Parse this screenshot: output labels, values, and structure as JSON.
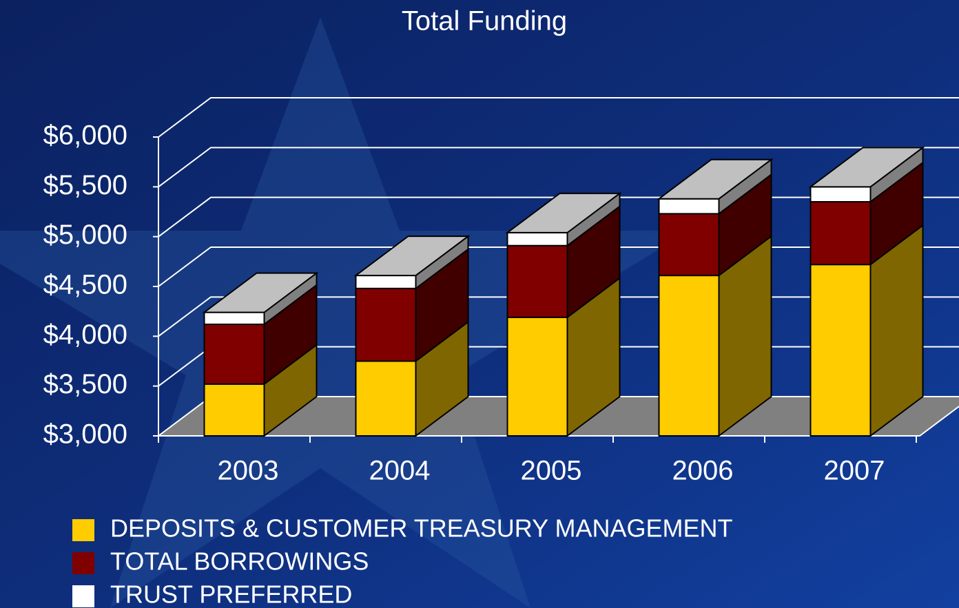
{
  "chart_data": {
    "type": "bar3d_stacked",
    "title": "Total Funding",
    "categories": [
      "2003",
      "2004",
      "2005",
      "2006",
      "2007"
    ],
    "series": [
      {
        "name": "DEPOSITS & CUSTOMER TREASURY MANAGEMENT",
        "color": "#ffcc00",
        "side_color": "#806600",
        "values": [
          3520,
          3750,
          4190,
          4610,
          4720
        ]
      },
      {
        "name": "TOTAL BORROWINGS",
        "color": "#800000",
        "side_color": "#400000",
        "values": [
          600,
          730,
          720,
          620,
          630
        ]
      },
      {
        "name": "TRUST PREFERRED",
        "color": "#ffffff",
        "side_color": "#808080",
        "values": [
          120,
          130,
          130,
          150,
          150
        ]
      }
    ],
    "ylim": [
      3000,
      6000
    ],
    "yticks": [
      {
        "value": 3000,
        "label": "$3,000"
      },
      {
        "value": 3500,
        "label": "$3,500"
      },
      {
        "value": 4000,
        "label": "$4,000"
      },
      {
        "value": 4500,
        "label": "$4,500"
      },
      {
        "value": 5000,
        "label": "$5,000"
      },
      {
        "value": 5500,
        "label": "$5,500"
      },
      {
        "value": 6000,
        "label": "$6,000"
      }
    ],
    "grid": true
  }
}
